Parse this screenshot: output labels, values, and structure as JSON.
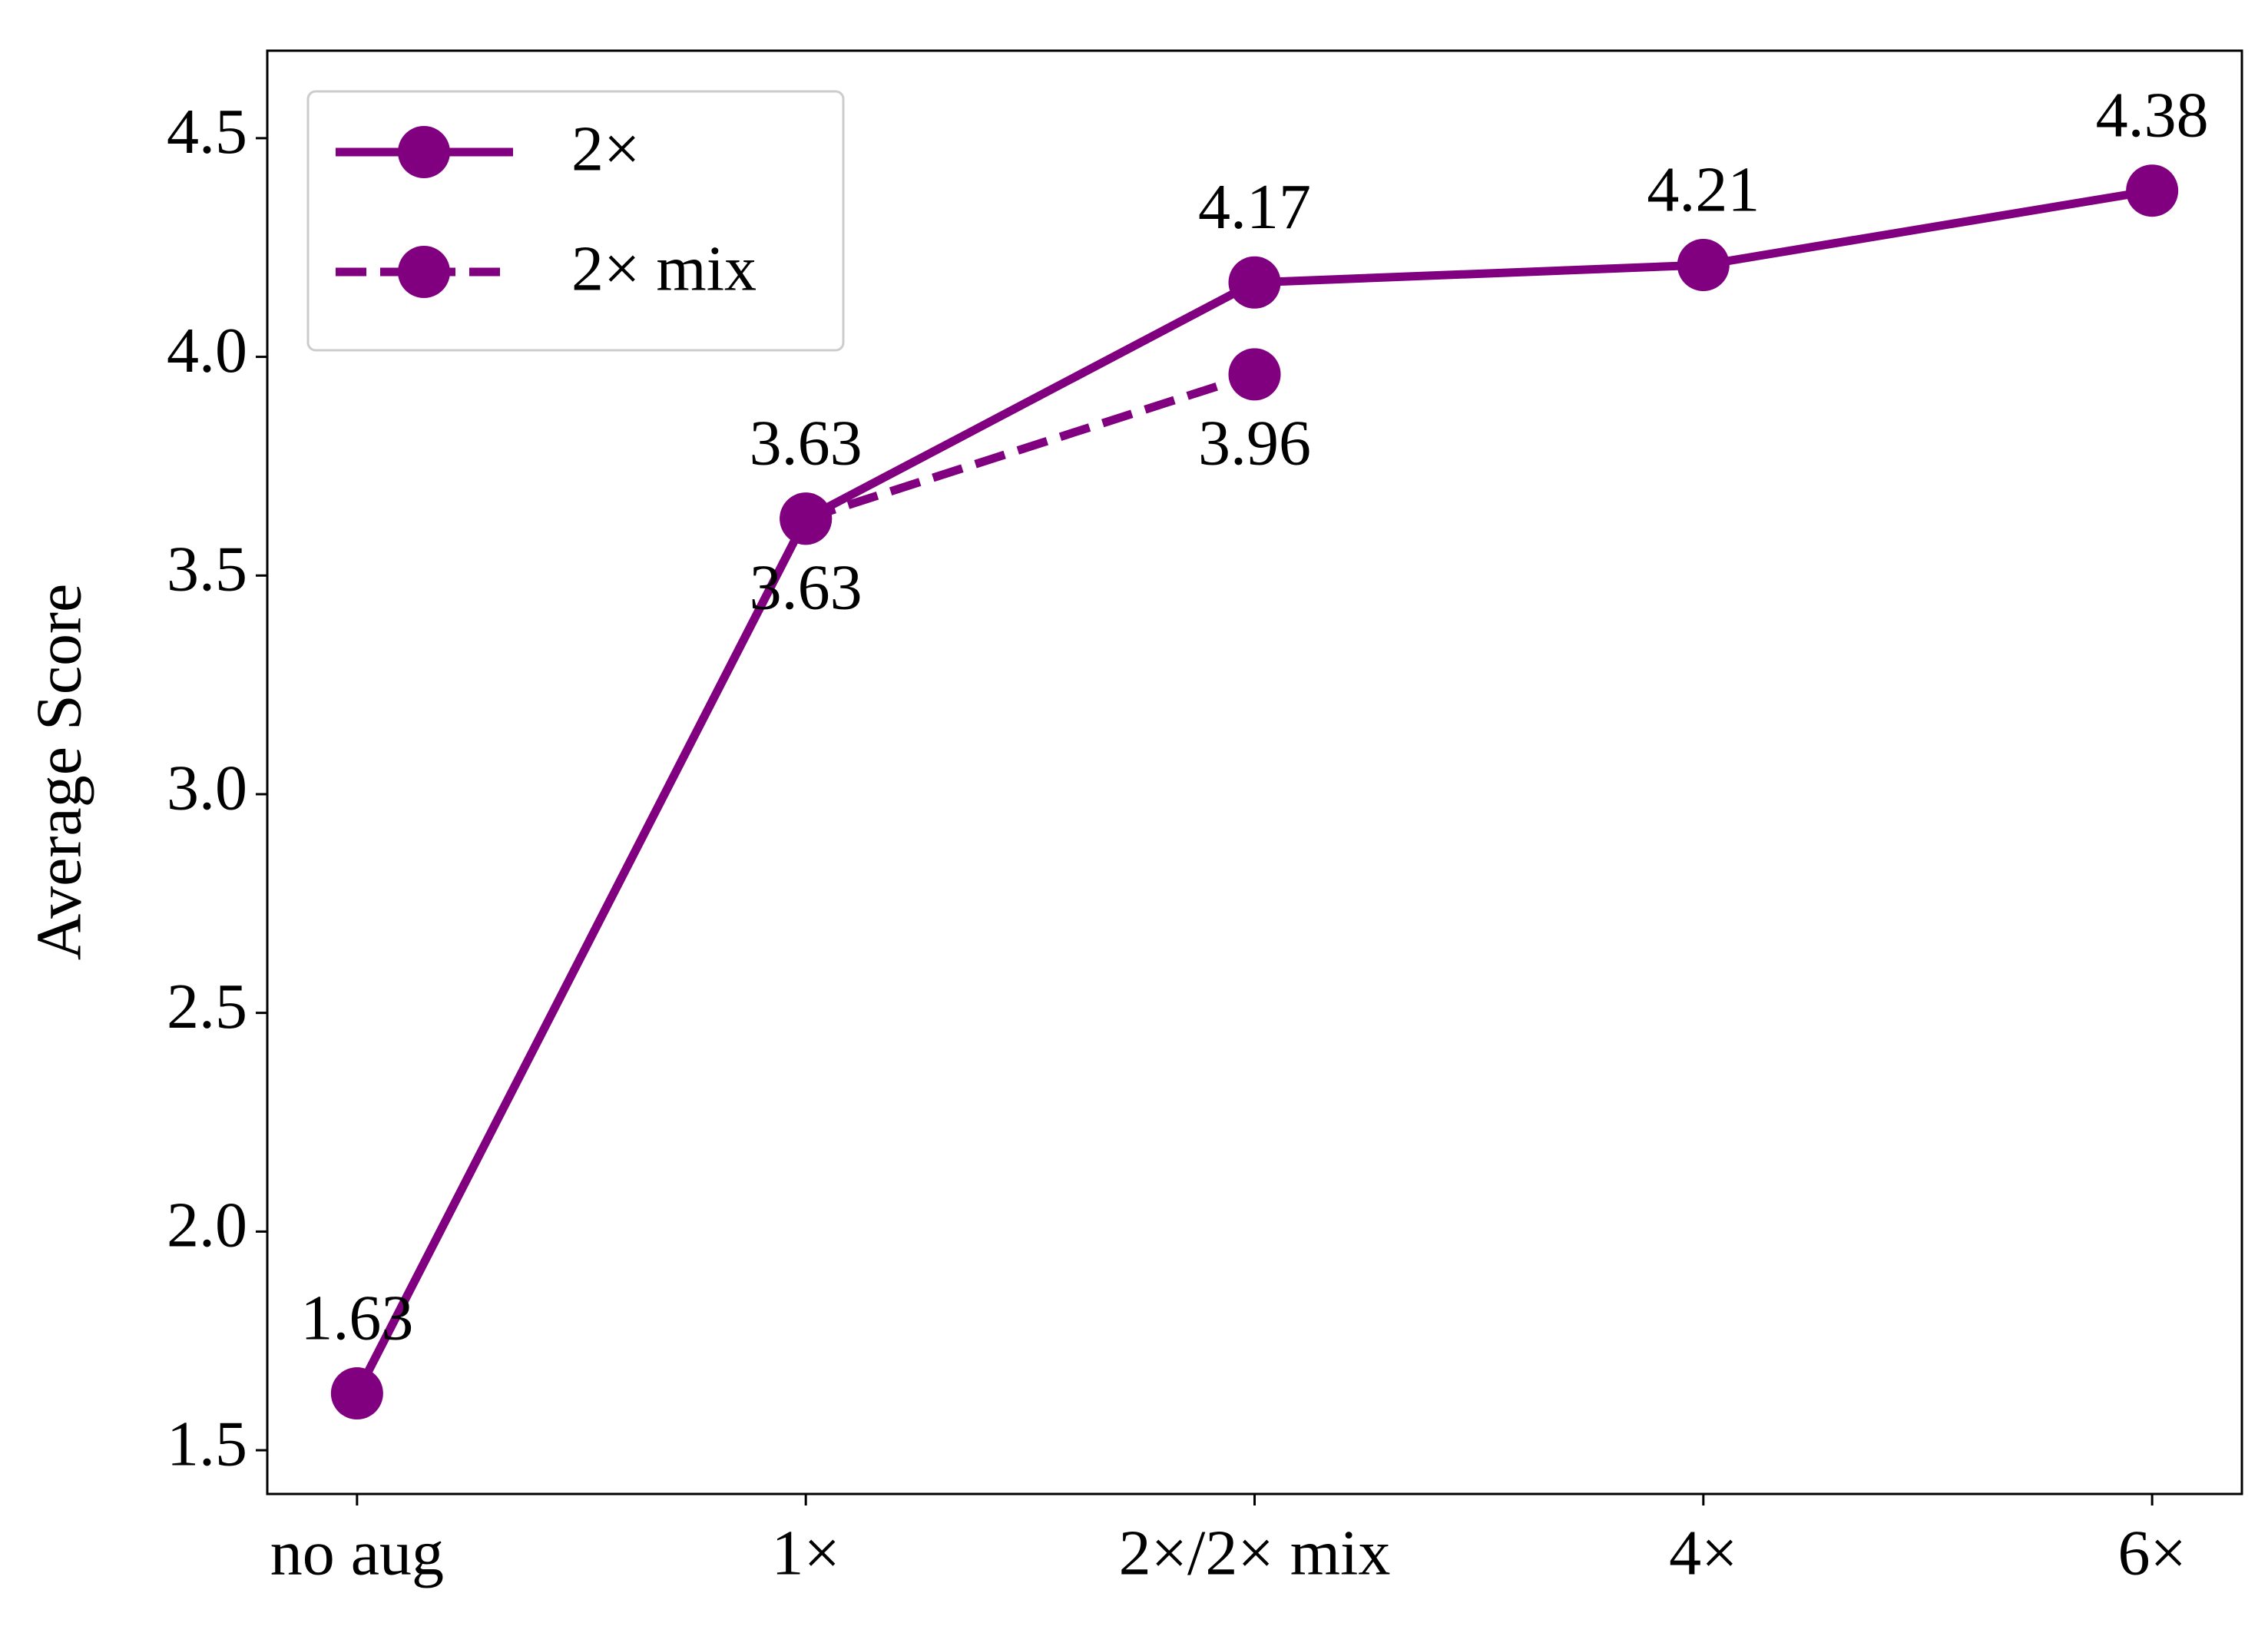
{
  "chart_data": {
    "type": "line",
    "y_label": "Average Score",
    "categories": [
      "no aug",
      "1×",
      "2×/2× mix",
      "4×",
      "6×"
    ],
    "series": [
      {
        "name": "2×",
        "color": "#800080",
        "dash": "solid",
        "label_position": "above",
        "values": [
          1.63,
          3.63,
          4.17,
          4.21,
          4.38
        ]
      },
      {
        "name": "2× mix",
        "color": "#800080",
        "dash": "dashed",
        "label_position": "below",
        "values": [
          null,
          3.63,
          3.96,
          null,
          null
        ]
      }
    ],
    "ylim": [
      1.4,
      4.7
    ],
    "yticks": [
      1.5,
      {
        "value": 2,
        "label": "2.0"
      },
      2.5,
      {
        "value": 3,
        "label": "3.0"
      },
      3.5,
      {
        "value": 4,
        "label": "4.0"
      },
      4.5
    ],
    "legend": "upper left",
    "grid": false
  }
}
